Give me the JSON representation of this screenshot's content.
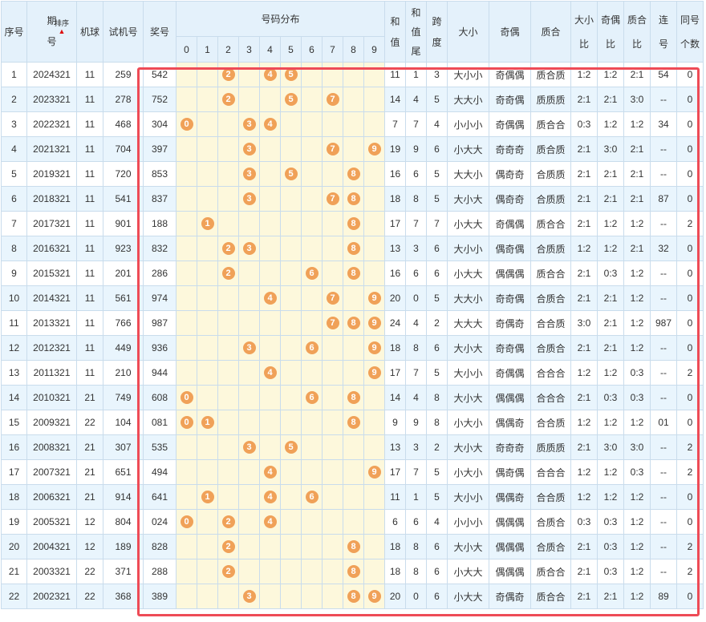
{
  "headers": {
    "seq": "序号",
    "period": "期号",
    "sort": "排序",
    "machine_ball": "机球",
    "test_no": "试机号",
    "prize_no": "奖号",
    "distribution": "号码分布",
    "digits": [
      "0",
      "1",
      "2",
      "3",
      "4",
      "5",
      "6",
      "7",
      "8",
      "9"
    ],
    "sum": "和值",
    "sum_tail": "和值尾",
    "span": "跨度",
    "big_small": "大小",
    "odd_even": "奇偶",
    "prime_comp": "质合",
    "big_small_ratio": "大小比",
    "odd_even_ratio": "奇偶比",
    "prime_comp_ratio": "质合比",
    "consecutive": "连号",
    "same_count": "同号个数"
  },
  "rows": [
    {
      "seq": "1",
      "period": "2024321",
      "mb": "11",
      "test": "259",
      "prize": "542",
      "balls": [
        2,
        4,
        5
      ],
      "sum": "11",
      "tail": "1",
      "span": "3",
      "bs": "大小小",
      "oe": "奇偶偶",
      "pc": "质合质",
      "bsr": "1:2",
      "oer": "1:2",
      "pcr": "2:1",
      "cons": "54",
      "same": "0"
    },
    {
      "seq": "2",
      "period": "2023321",
      "mb": "11",
      "test": "278",
      "prize": "752",
      "balls": [
        2,
        5,
        7
      ],
      "sum": "14",
      "tail": "4",
      "span": "5",
      "bs": "大大小",
      "oe": "奇奇偶",
      "pc": "质质质",
      "bsr": "2:1",
      "oer": "2:1",
      "pcr": "3:0",
      "cons": "--",
      "same": "0"
    },
    {
      "seq": "3",
      "period": "2022321",
      "mb": "11",
      "test": "468",
      "prize": "304",
      "balls": [
        0,
        3,
        4
      ],
      "sum": "7",
      "tail": "7",
      "span": "4",
      "bs": "小小小",
      "oe": "奇偶偶",
      "pc": "质合合",
      "bsr": "0:3",
      "oer": "1:2",
      "pcr": "1:2",
      "cons": "34",
      "same": "0"
    },
    {
      "seq": "4",
      "period": "2021321",
      "mb": "11",
      "test": "704",
      "prize": "397",
      "balls": [
        3,
        7,
        9
      ],
      "sum": "19",
      "tail": "9",
      "span": "6",
      "bs": "小大大",
      "oe": "奇奇奇",
      "pc": "质合质",
      "bsr": "2:1",
      "oer": "3:0",
      "pcr": "2:1",
      "cons": "--",
      "same": "0"
    },
    {
      "seq": "5",
      "period": "2019321",
      "mb": "11",
      "test": "720",
      "prize": "853",
      "balls": [
        3,
        5,
        8
      ],
      "sum": "16",
      "tail": "6",
      "span": "5",
      "bs": "大大小",
      "oe": "偶奇奇",
      "pc": "合质质",
      "bsr": "2:1",
      "oer": "2:1",
      "pcr": "2:1",
      "cons": "--",
      "same": "0"
    },
    {
      "seq": "6",
      "period": "2018321",
      "mb": "11",
      "test": "541",
      "prize": "837",
      "balls": [
        3,
        7,
        8
      ],
      "sum": "18",
      "tail": "8",
      "span": "5",
      "bs": "大小大",
      "oe": "偶奇奇",
      "pc": "合质质",
      "bsr": "2:1",
      "oer": "2:1",
      "pcr": "2:1",
      "cons": "87",
      "same": "0"
    },
    {
      "seq": "7",
      "period": "2017321",
      "mb": "11",
      "test": "901",
      "prize": "188",
      "balls": [
        1,
        8
      ],
      "sum": "17",
      "tail": "7",
      "span": "7",
      "bs": "小大大",
      "oe": "奇偶偶",
      "pc": "质合合",
      "bsr": "2:1",
      "oer": "1:2",
      "pcr": "1:2",
      "cons": "--",
      "same": "2"
    },
    {
      "seq": "8",
      "period": "2016321",
      "mb": "11",
      "test": "923",
      "prize": "832",
      "balls": [
        2,
        3,
        8
      ],
      "sum": "13",
      "tail": "3",
      "span": "6",
      "bs": "大小小",
      "oe": "偶奇偶",
      "pc": "合质质",
      "bsr": "1:2",
      "oer": "1:2",
      "pcr": "2:1",
      "cons": "32",
      "same": "0"
    },
    {
      "seq": "9",
      "period": "2015321",
      "mb": "11",
      "test": "201",
      "prize": "286",
      "balls": [
        2,
        6,
        8
      ],
      "sum": "16",
      "tail": "6",
      "span": "6",
      "bs": "小大大",
      "oe": "偶偶偶",
      "pc": "质合合",
      "bsr": "2:1",
      "oer": "0:3",
      "pcr": "1:2",
      "cons": "--",
      "same": "0"
    },
    {
      "seq": "10",
      "period": "2014321",
      "mb": "11",
      "test": "561",
      "prize": "974",
      "balls": [
        4,
        7,
        9
      ],
      "sum": "20",
      "tail": "0",
      "span": "5",
      "bs": "大大小",
      "oe": "奇奇偶",
      "pc": "合质合",
      "bsr": "2:1",
      "oer": "2:1",
      "pcr": "1:2",
      "cons": "--",
      "same": "0"
    },
    {
      "seq": "11",
      "period": "2013321",
      "mb": "11",
      "test": "766",
      "prize": "987",
      "balls": [
        7,
        8,
        9
      ],
      "sum": "24",
      "tail": "4",
      "span": "2",
      "bs": "大大大",
      "oe": "奇偶奇",
      "pc": "合合质",
      "bsr": "3:0",
      "oer": "2:1",
      "pcr": "1:2",
      "cons": "987",
      "same": "0"
    },
    {
      "seq": "12",
      "period": "2012321",
      "mb": "11",
      "test": "449",
      "prize": "936",
      "balls": [
        3,
        6,
        9
      ],
      "sum": "18",
      "tail": "8",
      "span": "6",
      "bs": "大小大",
      "oe": "奇奇偶",
      "pc": "合质合",
      "bsr": "2:1",
      "oer": "2:1",
      "pcr": "1:2",
      "cons": "--",
      "same": "0"
    },
    {
      "seq": "13",
      "period": "2011321",
      "mb": "11",
      "test": "210",
      "prize": "944",
      "balls": [
        4,
        9
      ],
      "sum": "17",
      "tail": "7",
      "span": "5",
      "bs": "大小小",
      "oe": "奇偶偶",
      "pc": "合合合",
      "bsr": "1:2",
      "oer": "1:2",
      "pcr": "0:3",
      "cons": "--",
      "same": "2"
    },
    {
      "seq": "14",
      "period": "2010321",
      "mb": "21",
      "test": "749",
      "prize": "608",
      "balls": [
        0,
        6,
        8
      ],
      "sum": "14",
      "tail": "4",
      "span": "8",
      "bs": "大小大",
      "oe": "偶偶偶",
      "pc": "合合合",
      "bsr": "2:1",
      "oer": "0:3",
      "pcr": "0:3",
      "cons": "--",
      "same": "0"
    },
    {
      "seq": "15",
      "period": "2009321",
      "mb": "22",
      "test": "104",
      "prize": "081",
      "balls": [
        0,
        1,
        8
      ],
      "sum": "9",
      "tail": "9",
      "span": "8",
      "bs": "小大小",
      "oe": "偶偶奇",
      "pc": "合合质",
      "bsr": "1:2",
      "oer": "1:2",
      "pcr": "1:2",
      "cons": "01",
      "same": "0"
    },
    {
      "seq": "16",
      "period": "2008321",
      "mb": "21",
      "test": "307",
      "prize": "535",
      "balls": [
        3,
        5
      ],
      "sum": "13",
      "tail": "3",
      "span": "2",
      "bs": "大小大",
      "oe": "奇奇奇",
      "pc": "质质质",
      "bsr": "2:1",
      "oer": "3:0",
      "pcr": "3:0",
      "cons": "--",
      "same": "2"
    },
    {
      "seq": "17",
      "period": "2007321",
      "mb": "21",
      "test": "651",
      "prize": "494",
      "balls": [
        4,
        9
      ],
      "sum": "17",
      "tail": "7",
      "span": "5",
      "bs": "小大小",
      "oe": "偶奇偶",
      "pc": "合合合",
      "bsr": "1:2",
      "oer": "1:2",
      "pcr": "0:3",
      "cons": "--",
      "same": "2"
    },
    {
      "seq": "18",
      "period": "2006321",
      "mb": "21",
      "test": "914",
      "prize": "641",
      "balls": [
        1,
        4,
        6
      ],
      "sum": "11",
      "tail": "1",
      "span": "5",
      "bs": "大小小",
      "oe": "偶偶奇",
      "pc": "合合质",
      "bsr": "1:2",
      "oer": "1:2",
      "pcr": "1:2",
      "cons": "--",
      "same": "0"
    },
    {
      "seq": "19",
      "period": "2005321",
      "mb": "12",
      "test": "804",
      "prize": "024",
      "balls": [
        0,
        2,
        4
      ],
      "sum": "6",
      "tail": "6",
      "span": "4",
      "bs": "小小小",
      "oe": "偶偶偶",
      "pc": "合质合",
      "bsr": "0:3",
      "oer": "0:3",
      "pcr": "1:2",
      "cons": "--",
      "same": "0"
    },
    {
      "seq": "20",
      "period": "2004321",
      "mb": "12",
      "test": "189",
      "prize": "828",
      "balls": [
        2,
        8
      ],
      "sum": "18",
      "tail": "8",
      "span": "6",
      "bs": "大小大",
      "oe": "偶偶偶",
      "pc": "合质合",
      "bsr": "2:1",
      "oer": "0:3",
      "pcr": "1:2",
      "cons": "--",
      "same": "2"
    },
    {
      "seq": "21",
      "period": "2003321",
      "mb": "22",
      "test": "371",
      "prize": "288",
      "balls": [
        2,
        8
      ],
      "sum": "18",
      "tail": "8",
      "span": "6",
      "bs": "小大大",
      "oe": "偶偶偶",
      "pc": "质合合",
      "bsr": "2:1",
      "oer": "0:3",
      "pcr": "1:2",
      "cons": "--",
      "same": "2"
    },
    {
      "seq": "22",
      "period": "2002321",
      "mb": "22",
      "test": "368",
      "prize": "389",
      "balls": [
        3,
        8,
        9
      ],
      "sum": "20",
      "tail": "0",
      "span": "6",
      "bs": "小大大",
      "oe": "奇偶奇",
      "pc": "质合合",
      "bsr": "2:1",
      "oer": "2:1",
      "pcr": "1:2",
      "cons": "89",
      "same": "0"
    }
  ]
}
